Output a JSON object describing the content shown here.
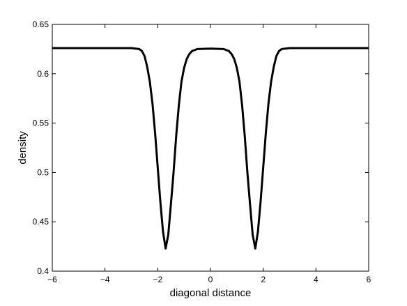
{
  "chart_data": {
    "type": "line",
    "xlabel": "diagonal distance",
    "ylabel": "density",
    "x": [
      -6,
      -3,
      -2.7,
      -2.6,
      -2.5,
      -2.4,
      -2.3,
      -2.2,
      -2.1,
      -2.0,
      -1.9,
      -1.8,
      -1.7,
      -1.6,
      -1.5,
      -1.4,
      -1.3,
      -1.2,
      -1.1,
      -1.0,
      -0.9,
      -0.8,
      -0.7,
      -0.5,
      0,
      0.5,
      0.7,
      0.8,
      0.9,
      1.0,
      1.1,
      1.2,
      1.3,
      1.4,
      1.5,
      1.6,
      1.7,
      1.8,
      1.9,
      2.0,
      2.1,
      2.2,
      2.3,
      2.4,
      2.5,
      2.6,
      2.7,
      3,
      6
    ],
    "series": [
      {
        "color": "#000000",
        "values": [
          0.626,
          0.626,
          0.625,
          0.623,
          0.618,
          0.607,
          0.592,
          0.57,
          0.54,
          0.505,
          0.47,
          0.44,
          0.423,
          0.437,
          0.468,
          0.5,
          0.537,
          0.568,
          0.592,
          0.606,
          0.615,
          0.62,
          0.623,
          0.625,
          0.6255,
          0.625,
          0.623,
          0.62,
          0.615,
          0.606,
          0.592,
          0.568,
          0.537,
          0.5,
          0.468,
          0.437,
          0.423,
          0.44,
          0.47,
          0.505,
          0.54,
          0.57,
          0.592,
          0.607,
          0.618,
          0.623,
          0.625,
          0.626,
          0.626
        ]
      }
    ],
    "xlim": [
      -6,
      6
    ],
    "xticks": [
      {
        "value": -6,
        "label": "−6"
      },
      {
        "value": -4,
        "label": "−4"
      },
      {
        "value": -2,
        "label": "−2"
      },
      0,
      2,
      4,
      6
    ],
    "ylim": [
      0.4,
      0.65
    ],
    "yticks": [
      0.4,
      0.45,
      0.5,
      0.55,
      0.6,
      0.65
    ]
  }
}
